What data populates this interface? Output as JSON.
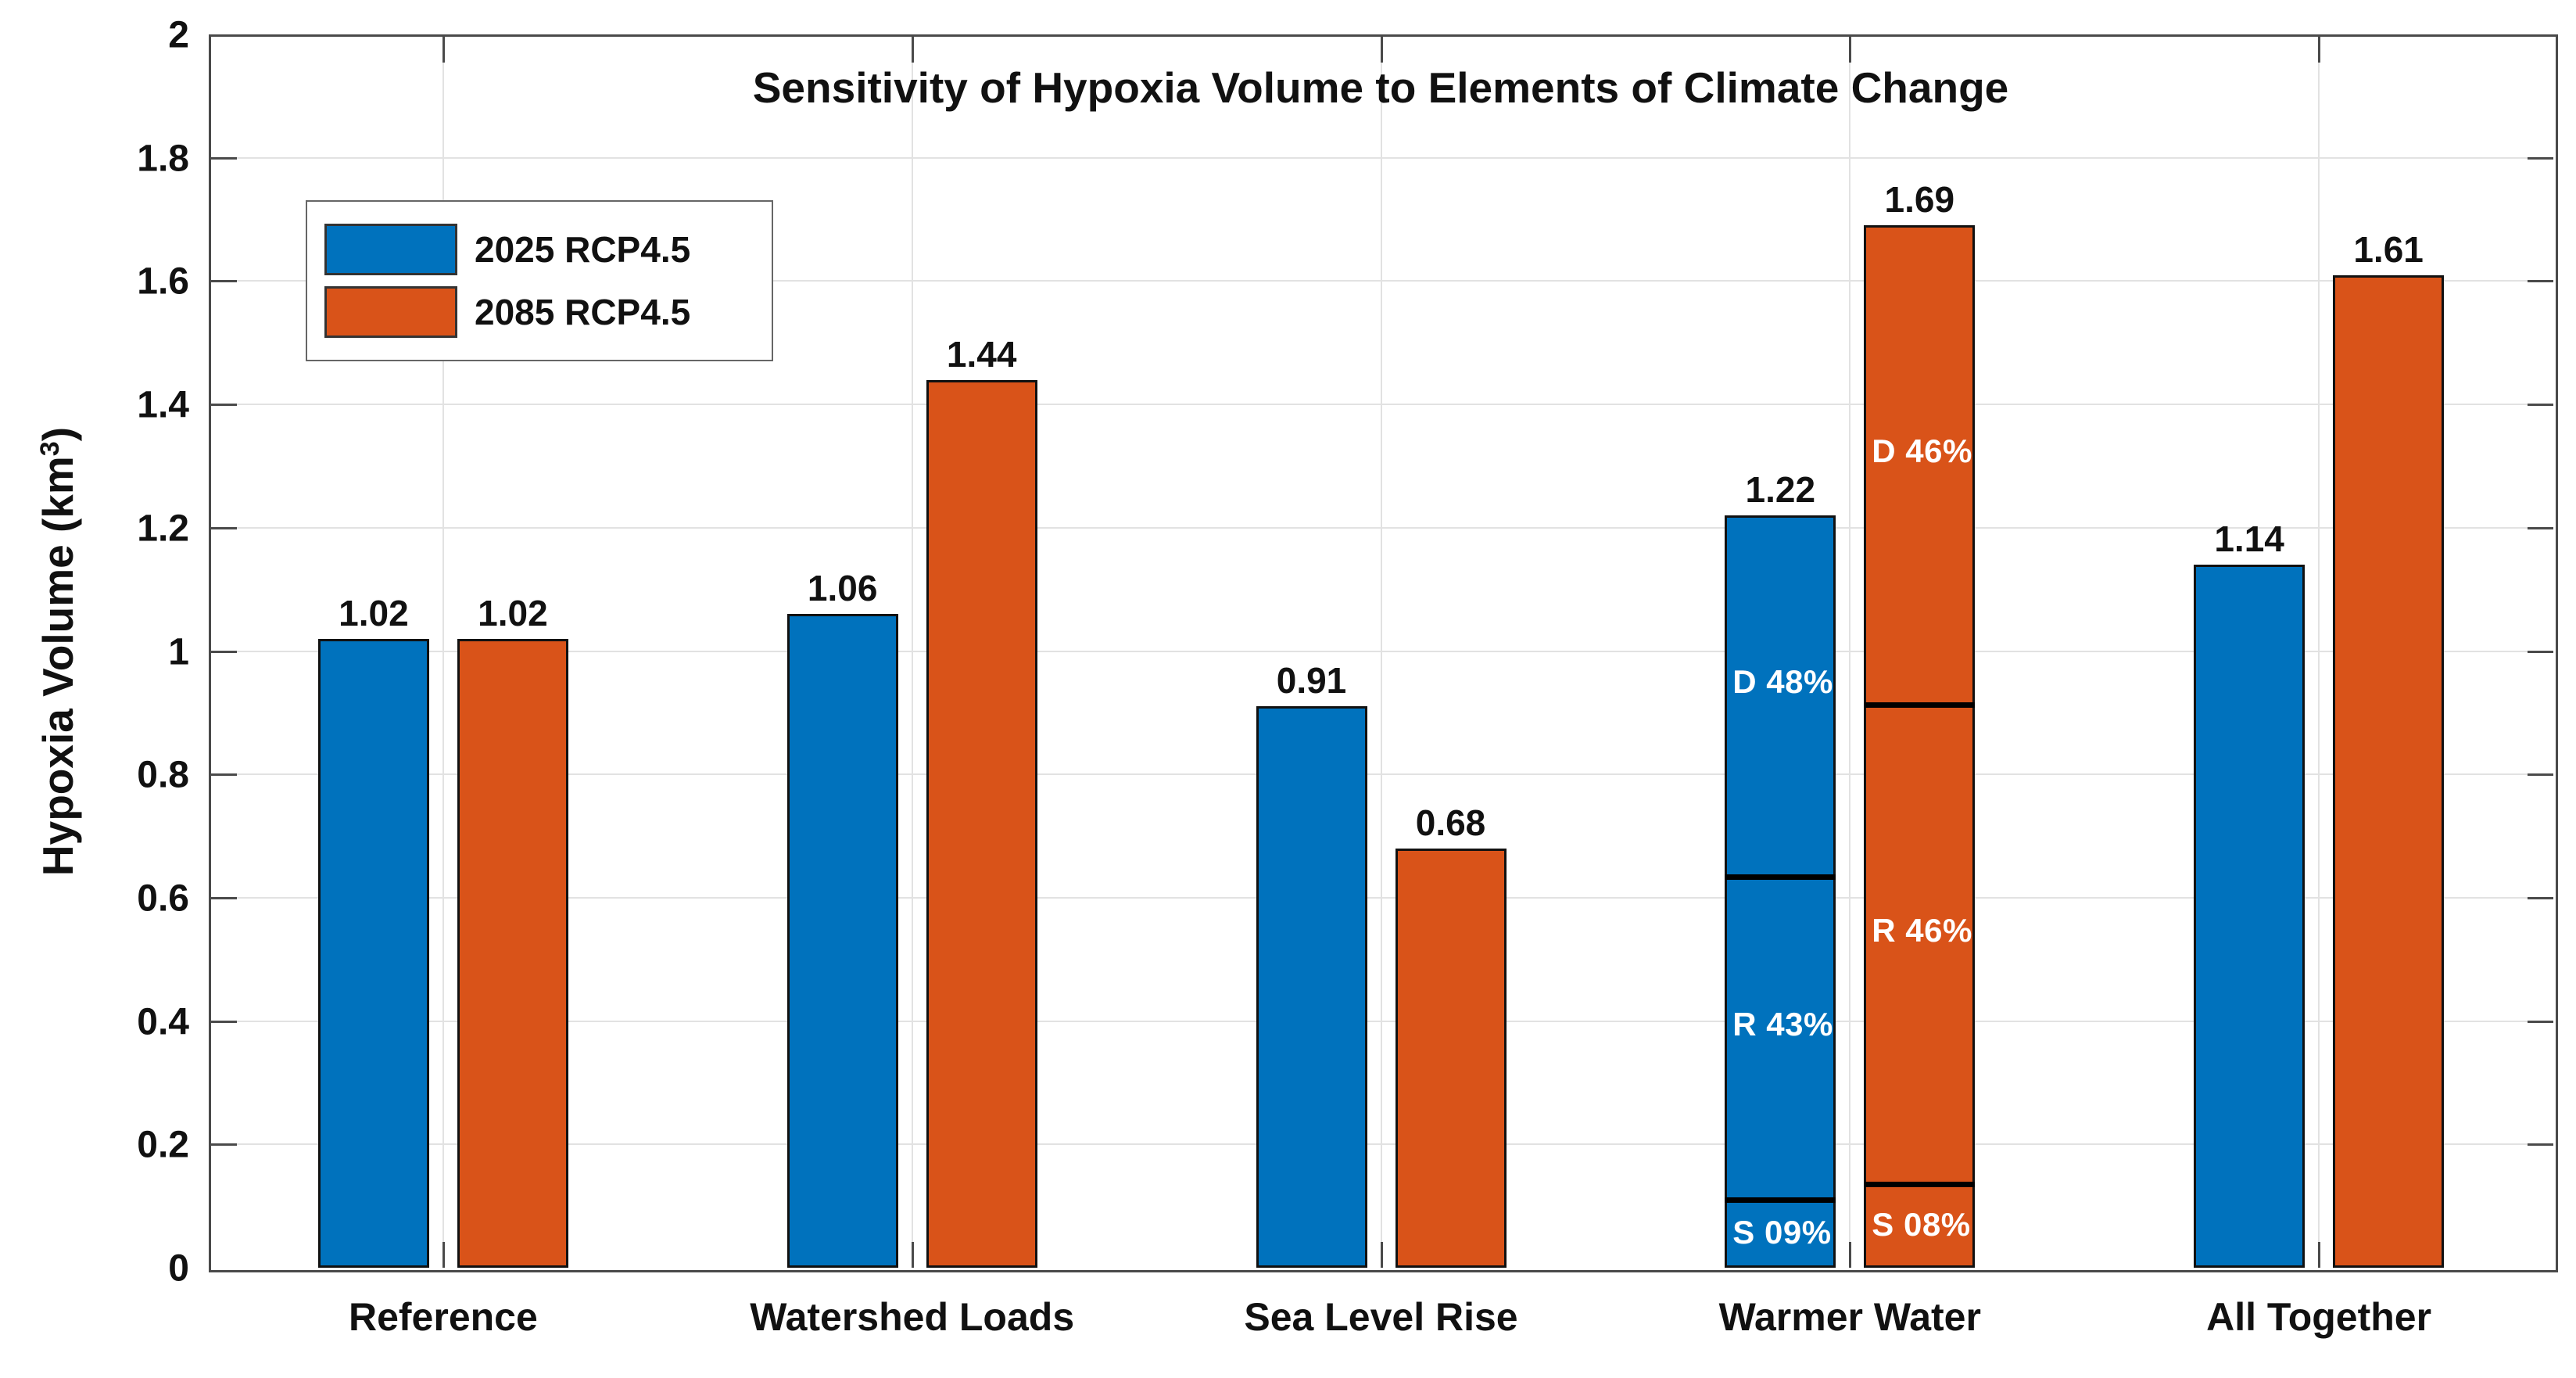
{
  "chart_data": {
    "type": "bar",
    "title": "Sensitivity of Hypoxia Volume to Elements of Climate Change",
    "ylabel": "Hypoxia Volume (km³)",
    "ylabel_parts": {
      "prefix": "Hypoxia Volume (km",
      "superscript": "3",
      "suffix": ")"
    },
    "xlabel": "",
    "ylim": [
      0,
      2
    ],
    "ytick_step": 0.2,
    "yticks": [
      "0",
      "0.2",
      "0.4",
      "0.6",
      "0.8",
      "1",
      "1.2",
      "1.4",
      "1.6",
      "1.8",
      "2"
    ],
    "grid": true,
    "legend_position": "top-left",
    "categories": [
      "Reference",
      "Watershed Loads",
      "Sea Level Rise",
      "Warmer Water",
      "All Together"
    ],
    "series": [
      {
        "name": "2025 RCP4.5",
        "color": "#0072BD",
        "values": [
          1.02,
          1.06,
          0.91,
          1.22,
          1.14
        ],
        "value_labels": [
          "1.02",
          "1.06",
          "0.91",
          "1.22",
          "1.14"
        ],
        "stacked_segments_by_category": {
          "3": [
            {
              "label": "S 09%",
              "percent": 9
            },
            {
              "label": "R 43%",
              "percent": 43
            },
            {
              "label": "D 48%",
              "percent": 48
            }
          ]
        }
      },
      {
        "name": "2085 RCP4.5",
        "color": "#D95319",
        "values": [
          1.02,
          1.44,
          0.68,
          1.69,
          1.61
        ],
        "value_labels": [
          "1.02",
          "1.44",
          "0.68",
          "1.69",
          "1.61"
        ],
        "stacked_segments_by_category": {
          "3": [
            {
              "label": "S 08%",
              "percent": 8
            },
            {
              "label": "R 46%",
              "percent": 46
            },
            {
              "label": "D 46%",
              "percent": 46
            }
          ]
        }
      }
    ],
    "colors": {
      "background": "#ffffff",
      "axis": "#4a4a4a",
      "grid": "#e2e2e2",
      "bar_edge": "#111111",
      "segment_divider": "#000000",
      "segment_label_text": "#ffffff",
      "text": "#111111"
    }
  }
}
